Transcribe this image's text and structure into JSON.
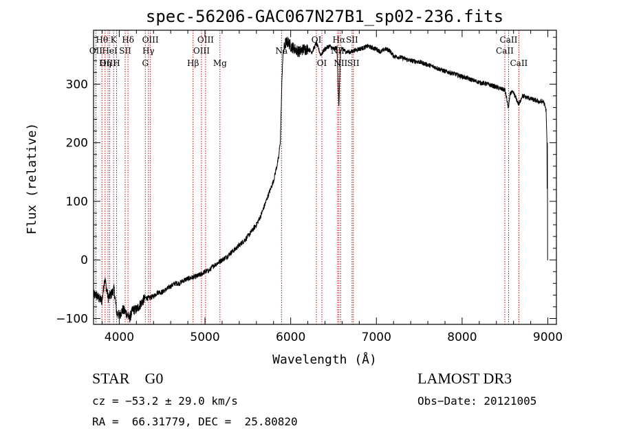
{
  "chart_data": {
    "type": "line",
    "title": "spec-56206-GAC067N27B1_sp02-236.fits",
    "xlabel": "Wavelength (Å)",
    "ylabel": "Flux (relative)",
    "xlim": [
      3700,
      9100
    ],
    "ylim": [
      -110,
      392
    ],
    "xticks": [
      4000,
      5000,
      6000,
      7000,
      8000,
      9000
    ],
    "xtick_labels": [
      "4000",
      "5000",
      "6000",
      "7000",
      "8000",
      "9000"
    ],
    "yticks": [
      -100,
      0,
      100,
      200,
      300
    ],
    "ytick_labels": [
      "−100",
      "0",
      "100",
      "200",
      "300"
    ],
    "series": [
      {
        "name": "spectrum",
        "x": [
          3700,
          3730,
          3760,
          3800,
          3830,
          3870,
          3900,
          3940,
          3970,
          4000,
          4040,
          4080,
          4120,
          4160,
          4200,
          4250,
          4300,
          4350,
          4400,
          4450,
          4500,
          4550,
          4600,
          4650,
          4700,
          4750,
          4800,
          4850,
          4900,
          4950,
          5000,
          5050,
          5100,
          5150,
          5200,
          5250,
          5300,
          5350,
          5400,
          5450,
          5500,
          5550,
          5600,
          5650,
          5700,
          5750,
          5800,
          5830,
          5860,
          5880,
          5895,
          5905,
          5920,
          5940,
          5970,
          6000,
          6050,
          6100,
          6150,
          6200,
          6250,
          6300,
          6350,
          6400,
          6450,
          6500,
          6540,
          6563,
          6580,
          6600,
          6650,
          6700,
          6750,
          6800,
          6850,
          6900,
          6950,
          7000,
          7050,
          7100,
          7150,
          7200,
          7300,
          7400,
          7500,
          7600,
          7700,
          7800,
          7900,
          8000,
          8100,
          8200,
          8300,
          8400,
          8450,
          8500,
          8542,
          8560,
          8600,
          8662,
          8700,
          8800,
          8900,
          8950,
          8980,
          8990,
          8995,
          9000
        ],
        "y": [
          -60,
          -60,
          -65,
          -70,
          -30,
          -65,
          -60,
          -50,
          -90,
          -95,
          -85,
          -90,
          -100,
          -85,
          -85,
          -75,
          -65,
          -65,
          -62,
          -55,
          -55,
          -50,
          -45,
          -40,
          -40,
          -35,
          -32,
          -30,
          -28,
          -25,
          -20,
          -18,
          -10,
          -5,
          0,
          5,
          12,
          18,
          25,
          32,
          40,
          50,
          60,
          75,
          95,
          115,
          135,
          155,
          175,
          205,
          290,
          340,
          360,
          370,
          372,
          365,
          360,
          355,
          360,
          360,
          355,
          370,
          350,
          360,
          365,
          360,
          362,
          260,
          355,
          360,
          355,
          355,
          358,
          360,
          362,
          365,
          362,
          360,
          355,
          360,
          358,
          348,
          345,
          340,
          338,
          333,
          328,
          322,
          318,
          313,
          308,
          303,
          300,
          295,
          292,
          290,
          258,
          285,
          285,
          265,
          280,
          275,
          270,
          270,
          255,
          200,
          0,
          0
        ]
      }
    ],
    "emission_lines": [
      {
        "name": "Hθ",
        "wl": 3798,
        "row": 1
      },
      {
        "name": "OII",
        "wl": 3727,
        "row": 2
      },
      {
        "name": "OIII",
        "wl": 3869,
        "row": 3
      },
      {
        "name": "K",
        "wl": 3934,
        "row": 1
      },
      {
        "name": "HeI",
        "wl": 3889,
        "row": 2
      },
      {
        "name": "Hη",
        "wl": 3835,
        "row": 3
      },
      {
        "name": "H",
        "wl": 3969,
        "row": 3
      },
      {
        "name": "Hδ",
        "wl": 4102,
        "row": 1
      },
      {
        "name": "SII",
        "wl": 4069,
        "row": 2
      },
      {
        "name": "OIII",
        "wl": 4363,
        "row": 1
      },
      {
        "name": "Hγ",
        "wl": 4340,
        "row": 2
      },
      {
        "name": "G",
        "wl": 4304,
        "row": 3
      },
      {
        "name": "OIII",
        "wl": 5007,
        "row": 1
      },
      {
        "name": "OIII",
        "wl": 4959,
        "row": 2
      },
      {
        "name": "Hβ",
        "wl": 4861,
        "row": 3
      },
      {
        "name": "Mg",
        "wl": 5175,
        "row": 3
      },
      {
        "name": "Na",
        "wl": 5893,
        "row": 2
      },
      {
        "name": "OI",
        "wl": 6300,
        "row": 1
      },
      {
        "name": "OI",
        "wl": 6364,
        "row": 3
      },
      {
        "name": "Hα",
        "wl": 6563,
        "row": 1
      },
      {
        "name": "NII",
        "wl": 6548,
        "row": 2
      },
      {
        "name": "NII",
        "wl": 6583,
        "row": 3
      },
      {
        "name": "SII",
        "wl": 6716,
        "row": 1
      },
      {
        "name": "SII",
        "wl": 6731,
        "row": 3
      },
      {
        "name": "CaII",
        "wl": 8542,
        "row": 1
      },
      {
        "name": "CaII",
        "wl": 8498,
        "row": 2
      },
      {
        "name": "CaII",
        "wl": 8662,
        "row": 3
      }
    ]
  },
  "info": {
    "classification": "STAR    G0",
    "survey": "LAMOST DR3",
    "redshift": "cz = −53.2 ± 29.0 km/s",
    "obs_date": "Obs−Date: 20121005",
    "coords": "RA =  66.31779, DEC =  25.80820"
  },
  "colors": {
    "spectrum": "#000000",
    "line_marker": "#c00000",
    "axes": "#000000"
  }
}
